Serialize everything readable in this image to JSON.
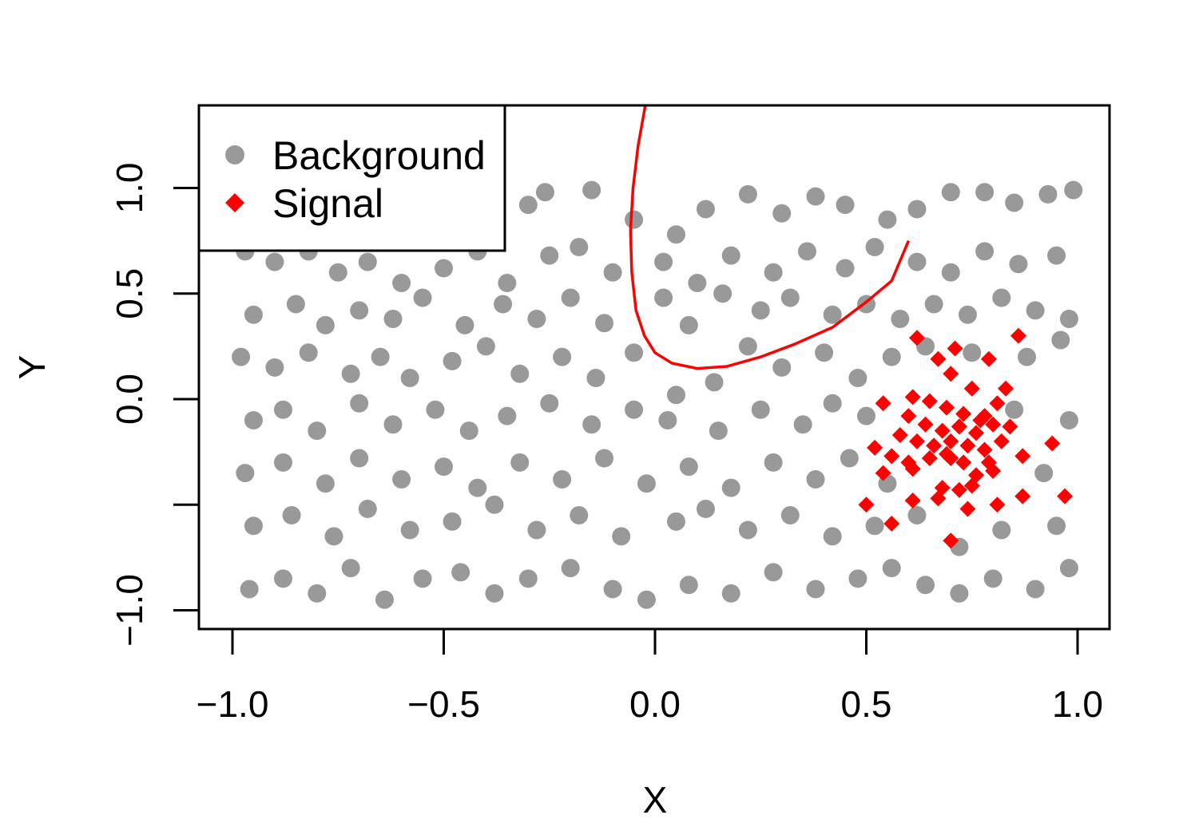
{
  "chart_data": {
    "type": "scatter",
    "title": "",
    "xlabel": "X",
    "ylabel": "Y",
    "xlim": [
      -1.08,
      1.08
    ],
    "ylim": [
      -1.09,
      1.39
    ],
    "x_ticks": [
      -1.0,
      -0.5,
      0.0,
      0.5,
      1.0
    ],
    "x_tick_labels": [
      "−1.0",
      "−0.5",
      "0.0",
      "0.5",
      "1.0"
    ],
    "y_ticks": [
      -1.0,
      -0.5,
      0.0,
      0.5,
      1.0
    ],
    "y_tick_labels": [
      "−1.0",
      "",
      "0.0",
      "0.5",
      "1.0"
    ],
    "grid": false,
    "legend": {
      "placement": "top-left",
      "entries": [
        {
          "label": "Background",
          "marker": "circle",
          "color": "#999999"
        },
        {
          "label": "Signal",
          "marker": "diamond",
          "color": "#FF0000"
        }
      ]
    },
    "series": [
      {
        "name": "Background",
        "marker": "circle",
        "color": "#999999",
        "points": [
          [
            -0.95,
            0.98
          ],
          [
            -0.88,
            0.92
          ],
          [
            -0.8,
            0.96
          ],
          [
            -0.7,
            0.88
          ],
          [
            -0.6,
            0.95
          ],
          [
            -0.52,
            0.9
          ],
          [
            -0.4,
            0.97
          ],
          [
            -0.3,
            0.92
          ],
          [
            -0.26,
            0.98
          ],
          [
            -0.15,
            0.99
          ],
          [
            -0.05,
            0.85
          ],
          [
            0.05,
            0.78
          ],
          [
            0.12,
            0.9
          ],
          [
            0.22,
            0.97
          ],
          [
            0.3,
            0.88
          ],
          [
            0.38,
            0.96
          ],
          [
            0.45,
            0.92
          ],
          [
            0.55,
            0.85
          ],
          [
            0.62,
            0.9
          ],
          [
            0.7,
            0.98
          ],
          [
            0.78,
            0.98
          ],
          [
            0.85,
            0.93
          ],
          [
            0.93,
            0.97
          ],
          [
            0.99,
            0.99
          ],
          [
            -0.97,
            0.7
          ],
          [
            -0.9,
            0.65
          ],
          [
            -0.82,
            0.7
          ],
          [
            -0.75,
            0.6
          ],
          [
            -0.68,
            0.65
          ],
          [
            -0.6,
            0.55
          ],
          [
            -0.5,
            0.62
          ],
          [
            -0.42,
            0.7
          ],
          [
            -0.35,
            0.55
          ],
          [
            -0.25,
            0.68
          ],
          [
            -0.18,
            0.72
          ],
          [
            -0.1,
            0.6
          ],
          [
            0.02,
            0.65
          ],
          [
            0.1,
            0.55
          ],
          [
            0.18,
            0.68
          ],
          [
            0.28,
            0.6
          ],
          [
            0.36,
            0.7
          ],
          [
            0.45,
            0.62
          ],
          [
            0.52,
            0.72
          ],
          [
            0.62,
            0.65
          ],
          [
            0.7,
            0.6
          ],
          [
            0.78,
            0.7
          ],
          [
            0.86,
            0.64
          ],
          [
            0.95,
            0.68
          ],
          [
            -0.95,
            0.4
          ],
          [
            -0.85,
            0.45
          ],
          [
            -0.78,
            0.35
          ],
          [
            -0.7,
            0.42
          ],
          [
            -0.62,
            0.38
          ],
          [
            -0.55,
            0.48
          ],
          [
            -0.45,
            0.35
          ],
          [
            -0.36,
            0.45
          ],
          [
            -0.28,
            0.38
          ],
          [
            -0.2,
            0.48
          ],
          [
            -0.12,
            0.36
          ],
          [
            0.02,
            0.48
          ],
          [
            0.08,
            0.35
          ],
          [
            0.16,
            0.5
          ],
          [
            0.25,
            0.42
          ],
          [
            0.32,
            0.48
          ],
          [
            0.42,
            0.4
          ],
          [
            0.5,
            0.45
          ],
          [
            0.58,
            0.38
          ],
          [
            0.66,
            0.45
          ],
          [
            0.74,
            0.4
          ],
          [
            0.82,
            0.48
          ],
          [
            0.9,
            0.42
          ],
          [
            0.98,
            0.38
          ],
          [
            -0.98,
            0.2
          ],
          [
            -0.9,
            0.15
          ],
          [
            -0.82,
            0.22
          ],
          [
            -0.72,
            0.12
          ],
          [
            -0.65,
            0.2
          ],
          [
            -0.58,
            0.1
          ],
          [
            -0.48,
            0.18
          ],
          [
            -0.4,
            0.25
          ],
          [
            -0.32,
            0.12
          ],
          [
            -0.22,
            0.2
          ],
          [
            -0.14,
            0.1
          ],
          [
            -0.05,
            0.22
          ],
          [
            0.05,
            0.02
          ],
          [
            0.14,
            0.08
          ],
          [
            0.22,
            0.25
          ],
          [
            0.3,
            0.15
          ],
          [
            0.4,
            0.22
          ],
          [
            0.48,
            0.1
          ],
          [
            0.56,
            0.2
          ],
          [
            0.64,
            0.25
          ],
          [
            0.75,
            0.22
          ],
          [
            0.88,
            0.2
          ],
          [
            0.96,
            0.28
          ],
          [
            -0.95,
            -0.1
          ],
          [
            -0.88,
            -0.05
          ],
          [
            -0.8,
            -0.15
          ],
          [
            -0.7,
            -0.02
          ],
          [
            -0.62,
            -0.12
          ],
          [
            -0.52,
            -0.05
          ],
          [
            -0.44,
            -0.15
          ],
          [
            -0.35,
            -0.08
          ],
          [
            -0.25,
            -0.02
          ],
          [
            -0.15,
            -0.12
          ],
          [
            -0.05,
            -0.05
          ],
          [
            0.03,
            -0.1
          ],
          [
            0.15,
            -0.15
          ],
          [
            0.25,
            -0.05
          ],
          [
            0.35,
            -0.12
          ],
          [
            0.42,
            -0.02
          ],
          [
            0.5,
            -0.08
          ],
          [
            0.85,
            -0.05
          ],
          [
            0.98,
            -0.1
          ],
          [
            -0.97,
            -0.35
          ],
          [
            -0.88,
            -0.3
          ],
          [
            -0.78,
            -0.4
          ],
          [
            -0.7,
            -0.28
          ],
          [
            -0.6,
            -0.38
          ],
          [
            -0.5,
            -0.32
          ],
          [
            -0.42,
            -0.42
          ],
          [
            -0.32,
            -0.3
          ],
          [
            -0.22,
            -0.38
          ],
          [
            -0.12,
            -0.28
          ],
          [
            -0.02,
            -0.4
          ],
          [
            0.08,
            -0.32
          ],
          [
            0.18,
            -0.42
          ],
          [
            0.28,
            -0.3
          ],
          [
            0.38,
            -0.38
          ],
          [
            0.46,
            -0.28
          ],
          [
            0.55,
            -0.4
          ],
          [
            0.92,
            -0.35
          ],
          [
            -0.95,
            -0.6
          ],
          [
            -0.86,
            -0.55
          ],
          [
            -0.76,
            -0.65
          ],
          [
            -0.68,
            -0.52
          ],
          [
            -0.58,
            -0.62
          ],
          [
            -0.48,
            -0.58
          ],
          [
            -0.38,
            -0.5
          ],
          [
            -0.28,
            -0.62
          ],
          [
            -0.18,
            -0.55
          ],
          [
            -0.08,
            -0.65
          ],
          [
            0.05,
            -0.58
          ],
          [
            0.12,
            -0.52
          ],
          [
            0.22,
            -0.62
          ],
          [
            0.32,
            -0.55
          ],
          [
            0.42,
            -0.65
          ],
          [
            0.52,
            -0.6
          ],
          [
            0.62,
            -0.55
          ],
          [
            0.72,
            -0.7
          ],
          [
            0.82,
            -0.62
          ],
          [
            0.95,
            -0.6
          ],
          [
            -0.96,
            -0.9
          ],
          [
            -0.88,
            -0.85
          ],
          [
            -0.8,
            -0.92
          ],
          [
            -0.72,
            -0.8
          ],
          [
            -0.64,
            -0.95
          ],
          [
            -0.55,
            -0.85
          ],
          [
            -0.46,
            -0.82
          ],
          [
            -0.38,
            -0.92
          ],
          [
            -0.3,
            -0.85
          ],
          [
            -0.2,
            -0.8
          ],
          [
            -0.1,
            -0.9
          ],
          [
            -0.02,
            -0.95
          ],
          [
            0.08,
            -0.88
          ],
          [
            0.18,
            -0.92
          ],
          [
            0.28,
            -0.82
          ],
          [
            0.38,
            -0.9
          ],
          [
            0.48,
            -0.85
          ],
          [
            0.56,
            -0.8
          ],
          [
            0.64,
            -0.88
          ],
          [
            0.72,
            -0.92
          ],
          [
            0.8,
            -0.85
          ],
          [
            0.9,
            -0.9
          ],
          [
            0.98,
            -0.8
          ]
        ]
      },
      {
        "name": "Signal",
        "marker": "diamond",
        "color": "#FF0000",
        "points": [
          [
            0.62,
            0.29
          ],
          [
            0.71,
            0.24
          ],
          [
            0.79,
            0.19
          ],
          [
            0.86,
            0.3
          ],
          [
            0.67,
            0.19
          ],
          [
            0.7,
            0.12
          ],
          [
            0.75,
            0.05
          ],
          [
            0.83,
            0.05
          ],
          [
            0.61,
            0.01
          ],
          [
            0.54,
            -0.02
          ],
          [
            0.65,
            -0.01
          ],
          [
            0.69,
            -0.04
          ],
          [
            0.73,
            -0.07
          ],
          [
            0.78,
            -0.08
          ],
          [
            0.81,
            -0.02
          ],
          [
            0.6,
            -0.08
          ],
          [
            0.64,
            -0.12
          ],
          [
            0.68,
            -0.15
          ],
          [
            0.72,
            -0.13
          ],
          [
            0.76,
            -0.16
          ],
          [
            0.8,
            -0.12
          ],
          [
            0.84,
            -0.13
          ],
          [
            0.58,
            -0.17
          ],
          [
            0.62,
            -0.2
          ],
          [
            0.66,
            -0.22
          ],
          [
            0.7,
            -0.2
          ],
          [
            0.74,
            -0.22
          ],
          [
            0.78,
            -0.24
          ],
          [
            0.82,
            -0.2
          ],
          [
            0.52,
            -0.23
          ],
          [
            0.56,
            -0.27
          ],
          [
            0.6,
            -0.3
          ],
          [
            0.65,
            -0.28
          ],
          [
            0.69,
            -0.26
          ],
          [
            0.73,
            -0.3
          ],
          [
            0.79,
            -0.3
          ],
          [
            0.87,
            -0.27
          ],
          [
            0.94,
            -0.21
          ],
          [
            0.54,
            -0.35
          ],
          [
            0.61,
            -0.33
          ],
          [
            0.76,
            -0.36
          ],
          [
            0.8,
            -0.34
          ],
          [
            0.68,
            -0.42
          ],
          [
            0.72,
            -0.43
          ],
          [
            0.75,
            -0.41
          ],
          [
            0.5,
            -0.5
          ],
          [
            0.61,
            -0.48
          ],
          [
            0.67,
            -0.47
          ],
          [
            0.74,
            -0.52
          ],
          [
            0.81,
            -0.5
          ],
          [
            0.87,
            -0.46
          ],
          [
            0.97,
            -0.46
          ],
          [
            0.56,
            -0.59
          ],
          [
            0.7,
            -0.67
          ],
          [
            0.72,
            -0.13
          ],
          [
            0.7,
            -0.28
          ],
          [
            0.77,
            -0.1
          ]
        ]
      }
    ],
    "curve": {
      "color": "#FF0000",
      "points": [
        [
          -0.023,
          1.39
        ],
        [
          -0.04,
          1.2
        ],
        [
          -0.052,
          1.0
        ],
        [
          -0.058,
          0.8
        ],
        [
          -0.055,
          0.6
        ],
        [
          -0.045,
          0.42
        ],
        [
          -0.025,
          0.3
        ],
        [
          0.0,
          0.22
        ],
        [
          0.04,
          0.17
        ],
        [
          0.1,
          0.145
        ],
        [
          0.17,
          0.155
        ],
        [
          0.25,
          0.2
        ],
        [
          0.33,
          0.26
        ],
        [
          0.42,
          0.34
        ],
        [
          0.5,
          0.46
        ],
        [
          0.56,
          0.56
        ],
        [
          0.6,
          0.75
        ]
      ]
    }
  }
}
